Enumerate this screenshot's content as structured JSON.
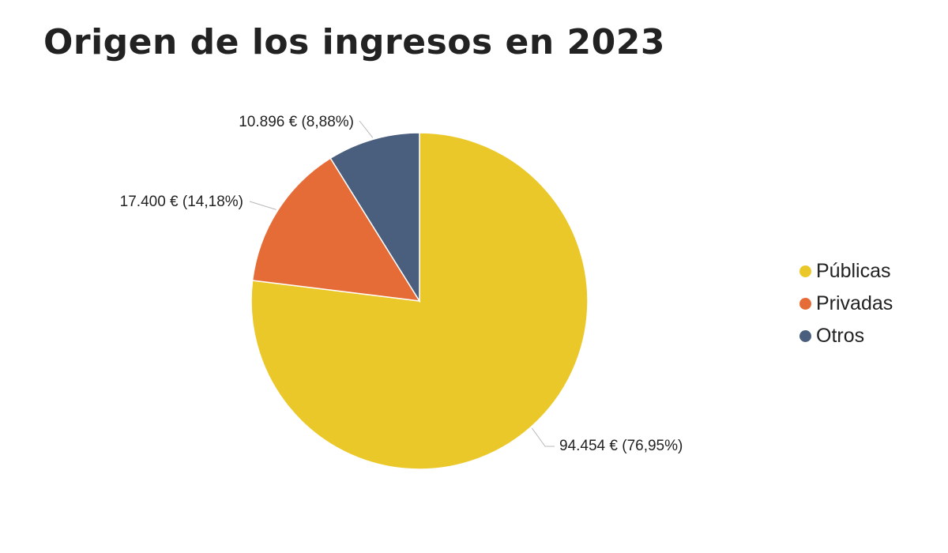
{
  "chart_data": {
    "type": "pie",
    "title": "Origen de los ingresos en 2023",
    "start_angle_deg": 0,
    "direction": "clockwise",
    "legend_position": "right",
    "slices": [
      {
        "name": "Públicas",
        "value": 94454,
        "percent": 76.95,
        "color": "#EBC829",
        "label": "94.454 € (76,95%)"
      },
      {
        "name": "Privadas",
        "value": 17400,
        "percent": 14.18,
        "color": "#E66C37",
        "label": "17.400 € (14,18%)"
      },
      {
        "name": "Otros",
        "value": 10896,
        "percent": 8.88,
        "color": "#4A5E7D",
        "label": "10.896 € (8,88%)"
      }
    ]
  }
}
